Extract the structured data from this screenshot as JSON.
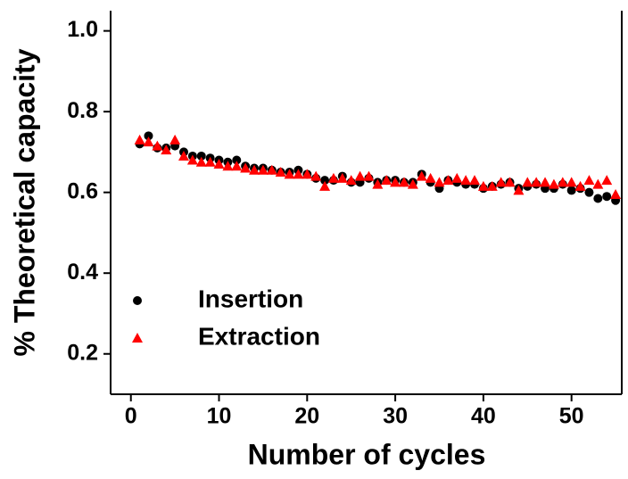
{
  "chart_data": {
    "type": "scatter",
    "xlabel": "Number of cycles",
    "ylabel": "% Theoretical capacity",
    "x": [
      1,
      2,
      3,
      4,
      5,
      6,
      7,
      8,
      9,
      10,
      11,
      12,
      13,
      14,
      15,
      16,
      17,
      18,
      19,
      20,
      21,
      22,
      23,
      24,
      25,
      26,
      27,
      28,
      29,
      30,
      31,
      32,
      33,
      34,
      35,
      36,
      37,
      38,
      39,
      40,
      41,
      42,
      43,
      44,
      45,
      46,
      47,
      48,
      49,
      50,
      51,
      52,
      53,
      54,
      55
    ],
    "series": [
      {
        "name": "Insertion",
        "color": "#000000",
        "marker": "circle",
        "values": [
          0.72,
          0.74,
          0.71,
          0.71,
          0.715,
          0.7,
          0.69,
          0.69,
          0.685,
          0.68,
          0.675,
          0.68,
          0.665,
          0.66,
          0.66,
          0.655,
          0.65,
          0.65,
          0.655,
          0.645,
          0.635,
          0.63,
          0.63,
          0.64,
          0.625,
          0.625,
          0.635,
          0.625,
          0.63,
          0.63,
          0.625,
          0.625,
          0.645,
          0.625,
          0.61,
          0.63,
          0.625,
          0.62,
          0.62,
          0.61,
          0.615,
          0.62,
          0.625,
          0.61,
          0.615,
          0.62,
          0.61,
          0.61,
          0.62,
          0.605,
          0.61,
          0.6,
          0.585,
          0.59,
          0.58
        ]
      },
      {
        "name": "Extraction",
        "color": "#ff0000",
        "marker": "triangle",
        "values": [
          0.73,
          0.725,
          0.715,
          0.705,
          0.73,
          0.69,
          0.68,
          0.675,
          0.675,
          0.67,
          0.665,
          0.665,
          0.66,
          0.655,
          0.655,
          0.655,
          0.65,
          0.645,
          0.645,
          0.645,
          0.64,
          0.615,
          0.635,
          0.635,
          0.63,
          0.64,
          0.64,
          0.62,
          0.63,
          0.625,
          0.625,
          0.62,
          0.64,
          0.635,
          0.625,
          0.63,
          0.635,
          0.63,
          0.63,
          0.615,
          0.615,
          0.625,
          0.625,
          0.605,
          0.625,
          0.625,
          0.625,
          0.62,
          0.625,
          0.625,
          0.615,
          0.63,
          0.62,
          0.63,
          0.595
        ]
      }
    ],
    "xlim": [
      -2.3,
      55.7
    ],
    "ylim": [
      0.1,
      1.05
    ],
    "xticks": [
      0,
      10,
      20,
      30,
      40,
      50
    ],
    "yticks": [
      0.2,
      0.4,
      0.6,
      0.8,
      {
        "value": 1,
        "label": "1.0"
      }
    ],
    "legend": "lower left",
    "grid": false
  }
}
